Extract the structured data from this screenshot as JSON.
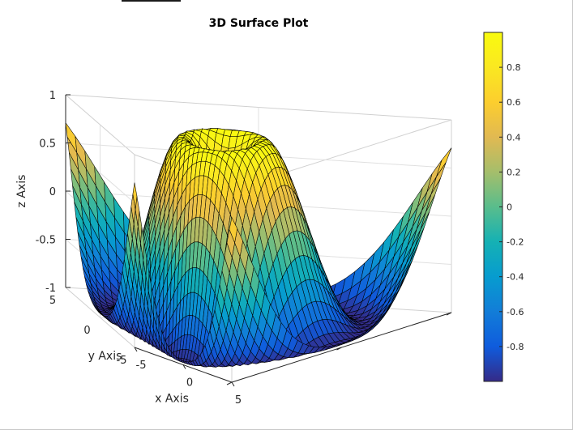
{
  "chart_data": {
    "type": "surface",
    "title": "3D Surface Plot",
    "xlabel": "x Axis",
    "ylabel": "y Axis",
    "zlabel": "z Axis",
    "function": "z = sin(sqrt(x^2 + y^2))",
    "xlim": [
      -5,
      5
    ],
    "ylim": [
      -5,
      5
    ],
    "zlim": [
      -1,
      1
    ],
    "grid_points": 41,
    "x_ticks": [
      "-5",
      "0",
      "5"
    ],
    "y_ticks": [
      "-5",
      "0",
      "5"
    ],
    "z_ticks": [
      "-1",
      "-0.5",
      "0",
      "0.5",
      "1"
    ],
    "colorbar": {
      "colormap": "parula",
      "range": [
        -1,
        1
      ],
      "ticks": [
        "-0.8",
        "-0.6",
        "-0.4",
        "-0.2",
        "0",
        "0.2",
        "0.4",
        "0.6",
        "0.8"
      ]
    },
    "grid": true,
    "edge_color": "#000000",
    "view": {
      "azimuth": -37.5,
      "elevation": 30
    }
  }
}
